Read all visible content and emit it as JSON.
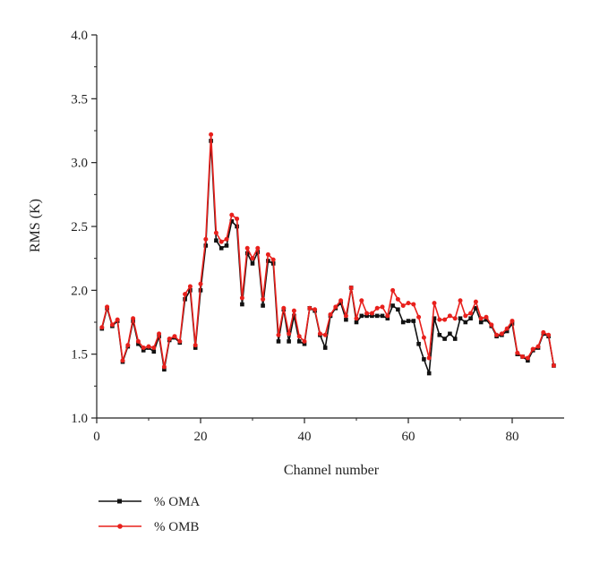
{
  "chart_data": {
    "type": "line",
    "xlabel": "Channel number",
    "ylabel": "RMS (K)",
    "xlim": [
      0,
      90
    ],
    "ylim": [
      1.0,
      4.0
    ],
    "x_ticks": [
      "0",
      "20",
      "40",
      "60",
      "80"
    ],
    "y_ticks": [
      "1.0",
      "1.5",
      "2.0",
      "2.5",
      "3.0",
      "3.5",
      "4.0"
    ],
    "grid": false,
    "legend_position": "bottom-left below plot",
    "x": [
      1,
      2,
      3,
      4,
      5,
      6,
      7,
      8,
      9,
      10,
      11,
      12,
      13,
      14,
      15,
      16,
      17,
      18,
      19,
      20,
      21,
      22,
      23,
      24,
      25,
      26,
      27,
      28,
      29,
      30,
      31,
      32,
      33,
      34,
      35,
      36,
      37,
      38,
      39,
      40,
      41,
      42,
      43,
      44,
      45,
      46,
      47,
      48,
      49,
      50,
      51,
      52,
      53,
      54,
      55,
      56,
      57,
      58,
      59,
      60,
      61,
      62,
      63,
      64,
      65,
      66,
      67,
      68,
      69,
      70,
      71,
      72,
      73,
      74,
      75,
      76,
      77,
      78,
      79,
      80,
      81,
      82,
      83,
      84,
      85,
      86,
      87,
      88
    ],
    "series": [
      {
        "name": "% OMA",
        "color": "#111111",
        "marker": "square",
        "values": [
          1.7,
          1.86,
          1.72,
          1.76,
          1.44,
          1.56,
          1.76,
          1.58,
          1.53,
          1.55,
          1.52,
          1.64,
          1.38,
          1.61,
          1.63,
          1.59,
          1.93,
          2.0,
          1.55,
          2.0,
          2.35,
          3.17,
          2.39,
          2.33,
          2.35,
          2.54,
          2.5,
          1.89,
          2.29,
          2.21,
          2.3,
          1.88,
          2.23,
          2.21,
          1.6,
          1.85,
          1.6,
          1.8,
          1.6,
          1.58,
          1.86,
          1.84,
          1.65,
          1.55,
          1.8,
          1.86,
          1.9,
          1.77,
          2.02,
          1.75,
          1.8,
          1.8,
          1.8,
          1.8,
          1.8,
          1.78,
          1.88,
          1.85,
          1.75,
          1.76,
          1.76,
          1.58,
          1.46,
          1.35,
          1.78,
          1.65,
          1.62,
          1.66,
          1.62,
          1.78,
          1.75,
          1.78,
          1.86,
          1.75,
          1.77,
          1.72,
          1.64,
          1.65,
          1.68,
          1.74,
          1.5,
          1.48,
          1.45,
          1.53,
          1.55,
          1.66,
          1.64,
          1.41
        ]
      },
      {
        "name": "% OMB",
        "color": "#e8201c",
        "marker": "circle",
        "values": [
          1.71,
          1.87,
          1.73,
          1.77,
          1.45,
          1.57,
          1.78,
          1.6,
          1.55,
          1.56,
          1.55,
          1.66,
          1.4,
          1.62,
          1.64,
          1.6,
          1.97,
          2.03,
          1.57,
          2.05,
          2.4,
          3.22,
          2.45,
          2.38,
          2.4,
          2.59,
          2.56,
          1.94,
          2.33,
          2.25,
          2.33,
          1.93,
          2.28,
          2.24,
          1.65,
          1.86,
          1.66,
          1.84,
          1.64,
          1.6,
          1.86,
          1.85,
          1.66,
          1.65,
          1.81,
          1.87,
          1.92,
          1.8,
          2.02,
          1.78,
          1.92,
          1.82,
          1.82,
          1.86,
          1.87,
          1.8,
          2.0,
          1.93,
          1.88,
          1.9,
          1.89,
          1.79,
          1.63,
          1.47,
          1.9,
          1.77,
          1.77,
          1.8,
          1.78,
          1.92,
          1.8,
          1.82,
          1.91,
          1.78,
          1.79,
          1.73,
          1.65,
          1.66,
          1.7,
          1.76,
          1.51,
          1.48,
          1.47,
          1.54,
          1.56,
          1.67,
          1.65,
          1.41
        ]
      }
    ]
  }
}
